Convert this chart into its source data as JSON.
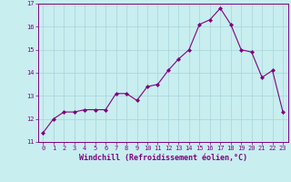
{
  "x": [
    0,
    1,
    2,
    3,
    4,
    5,
    6,
    7,
    8,
    9,
    10,
    11,
    12,
    13,
    14,
    15,
    16,
    17,
    18,
    19,
    20,
    21,
    22,
    23
  ],
  "y": [
    11.4,
    12.0,
    12.3,
    12.3,
    12.4,
    12.4,
    12.4,
    13.1,
    13.1,
    12.8,
    13.4,
    13.5,
    14.1,
    14.6,
    15.0,
    16.1,
    16.3,
    16.8,
    16.1,
    15.0,
    14.9,
    13.8,
    14.1,
    12.3
  ],
  "line_color": "#800080",
  "marker": "D",
  "marker_size": 2.0,
  "bg_color": "#c8eef0",
  "grid_color": "#a8d4d8",
  "xlabel": "Windchill (Refroidissement éolien,°C)",
  "ylim": [
    11,
    17
  ],
  "xlim": [
    -0.5,
    23.5
  ],
  "yticks": [
    11,
    12,
    13,
    14,
    15,
    16,
    17
  ],
  "xticks": [
    0,
    1,
    2,
    3,
    4,
    5,
    6,
    7,
    8,
    9,
    10,
    11,
    12,
    13,
    14,
    15,
    16,
    17,
    18,
    19,
    20,
    21,
    22,
    23
  ],
  "tick_color": "#800080",
  "tick_fontsize": 5.0,
  "xlabel_fontsize": 6.0
}
